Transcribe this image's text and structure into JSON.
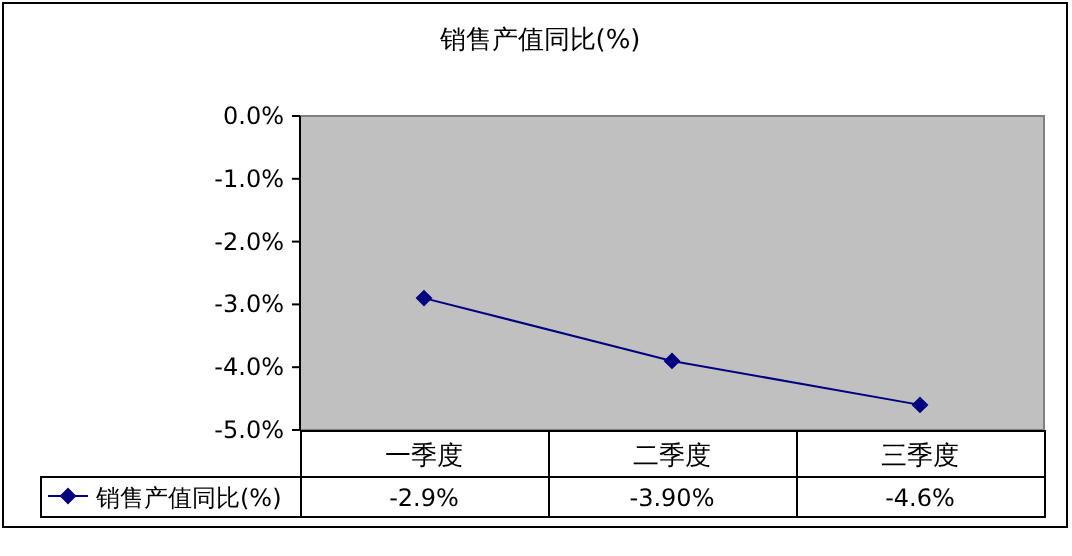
{
  "chart_data": {
    "type": "line",
    "title": "销售产值同比(%)",
    "categories": [
      "一季度",
      "二季度",
      "三季度"
    ],
    "series": [
      {
        "name": "销售产值同比(%)",
        "color": "#000080",
        "values": [
          -2.9,
          -3.9,
          -4.6
        ],
        "value_labels": [
          "-2.9%",
          "-3.90%",
          "-4.6%"
        ]
      }
    ],
    "ylim": [
      -5,
      0
    ],
    "yticks": [
      {
        "value": 0,
        "label": "0.0%"
      },
      {
        "value": -1,
        "label": "-1.0%"
      },
      {
        "value": -2,
        "label": "-2.0%"
      },
      {
        "value": -3,
        "label": "-3.0%"
      },
      {
        "value": -4,
        "label": "-4.0%"
      },
      {
        "value": -5,
        "label": "-5.0%"
      }
    ],
    "marker": "diamond",
    "line_style": "solid",
    "legend": "bottom",
    "grid": false
  }
}
